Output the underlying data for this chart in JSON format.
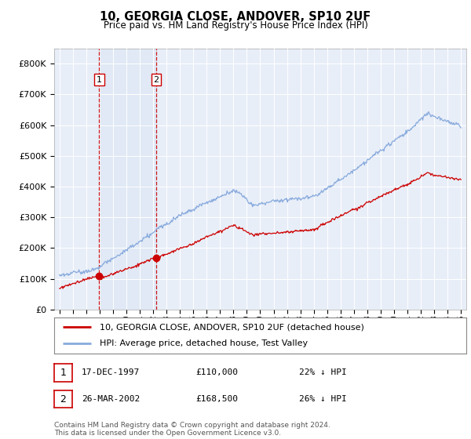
{
  "title": "10, GEORGIA CLOSE, ANDOVER, SP10 2UF",
  "subtitle": "Price paid vs. HM Land Registry's House Price Index (HPI)",
  "ylim": [
    0,
    850000
  ],
  "yticks": [
    0,
    100000,
    200000,
    300000,
    400000,
    500000,
    600000,
    700000,
    800000
  ],
  "ytick_labels": [
    "£0",
    "£100K",
    "£200K",
    "£300K",
    "£400K",
    "£500K",
    "£600K",
    "£700K",
    "£800K"
  ],
  "sale1_x": 1997.96,
  "sale1_y": 110000,
  "sale2_x": 2002.22,
  "sale2_y": 168500,
  "legend_line1": "10, GEORGIA CLOSE, ANDOVER, SP10 2UF (detached house)",
  "legend_line2": "HPI: Average price, detached house, Test Valley",
  "table_row1": [
    "1",
    "17-DEC-1997",
    "£110,000",
    "22% ↓ HPI"
  ],
  "table_row2": [
    "2",
    "26-MAR-2002",
    "£168,500",
    "26% ↓ HPI"
  ],
  "footer": "Contains HM Land Registry data © Crown copyright and database right 2024.\nThis data is licensed under the Open Government Licence v3.0.",
  "color_red": "#cc0000",
  "color_blue": "#88aadd",
  "color_blue_fill": "#dde8f5",
  "background_chart": "#e8eef8",
  "background_fig": "#ffffff",
  "xlim_left": 1994.6,
  "xlim_right": 2025.4
}
